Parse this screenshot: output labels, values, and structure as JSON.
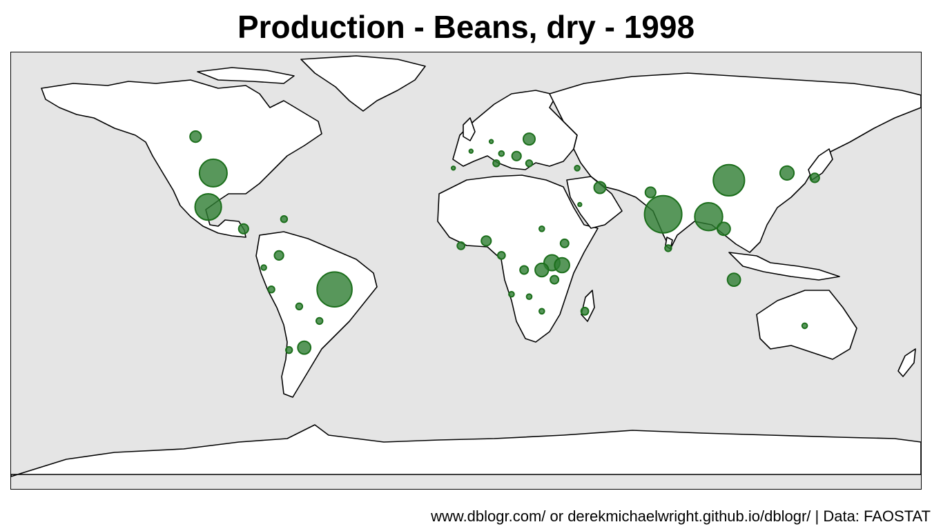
{
  "title": "Production - Beans, dry - 1998",
  "caption": "www.dblogr.com/ or derekmichaelwright.github.io/dblogr/ | Data: FAOSTAT",
  "colors": {
    "ocean": "#e5e5e5",
    "land": "#ffffff",
    "bubble": "#2e7d32"
  },
  "chart_data": {
    "type": "bubble-map",
    "points": [
      {
        "lon": 78,
        "lat": 21,
        "value": 100
      },
      {
        "lon": -52,
        "lat": -10,
        "value": 88
      },
      {
        "lon": 104,
        "lat": 35,
        "value": 70
      },
      {
        "lon": 96,
        "lat": 20,
        "value": 56
      },
      {
        "lon": -100,
        "lat": 38,
        "value": 55
      },
      {
        "lon": -102,
        "lat": 24,
        "value": 50
      },
      {
        "lon": 34,
        "lat": 1,
        "value": 18
      },
      {
        "lon": 38,
        "lat": 0,
        "value": 16
      },
      {
        "lon": 30,
        "lat": -2,
        "value": 13
      },
      {
        "lon": 127,
        "lat": 38,
        "value": 14
      },
      {
        "lon": 102,
        "lat": 15,
        "value": 12
      },
      {
        "lon": 106,
        "lat": -6,
        "value": 12
      },
      {
        "lon": -64,
        "lat": -34,
        "value": 12
      },
      {
        "lon": 53,
        "lat": 32,
        "value": 10
      },
      {
        "lon": 25,
        "lat": 52,
        "value": 10
      },
      {
        "lon": -107,
        "lat": 53,
        "value": 9
      },
      {
        "lon": 73,
        "lat": 30,
        "value": 8
      },
      {
        "lon": 138,
        "lat": 36,
        "value": 6
      },
      {
        "lon": 8,
        "lat": 10,
        "value": 7
      },
      {
        "lon": 20,
        "lat": 45,
        "value": 6
      },
      {
        "lon": -74,
        "lat": 4,
        "value": 6
      },
      {
        "lon": -88,
        "lat": 15,
        "value": 7
      },
      {
        "lon": 23,
        "lat": -2,
        "value": 5
      },
      {
        "lon": 39,
        "lat": 9,
        "value": 5
      },
      {
        "lon": 35,
        "lat": -6,
        "value": 5
      },
      {
        "lon": 47,
        "lat": -19,
        "value": 4
      },
      {
        "lon": -2,
        "lat": 8,
        "value": 4
      },
      {
        "lon": 14,
        "lat": 4,
        "value": 4
      },
      {
        "lon": 80,
        "lat": 7,
        "value": 3
      },
      {
        "lon": -58,
        "lat": -23,
        "value": 3
      },
      {
        "lon": -66,
        "lat": -17,
        "value": 3
      },
      {
        "lon": -77,
        "lat": -10,
        "value": 3
      },
      {
        "lon": -70,
        "lat": -35,
        "value": 3
      },
      {
        "lon": -72,
        "lat": 19,
        "value": 3
      },
      {
        "lon": 12,
        "lat": 42,
        "value": 3
      },
      {
        "lon": 25,
        "lat": 42,
        "value": 3
      },
      {
        "lon": 14,
        "lat": 46,
        "value": 2
      },
      {
        "lon": 44,
        "lat": 40,
        "value": 2
      },
      {
        "lon": 30,
        "lat": -19,
        "value": 2
      },
      {
        "lon": 25,
        "lat": -13,
        "value": 2
      },
      {
        "lon": 134,
        "lat": -25,
        "value": 2
      },
      {
        "lon": 30,
        "lat": 15,
        "value": 2
      },
      {
        "lon": 45,
        "lat": 25,
        "value": 1
      },
      {
        "lon": -5,
        "lat": 40,
        "value": 1
      },
      {
        "lon": 2,
        "lat": 47,
        "value": 1
      },
      {
        "lon": 10,
        "lat": 51,
        "value": 1
      },
      {
        "lon": -80,
        "lat": -1,
        "value": 2
      },
      {
        "lon": 18,
        "lat": -12,
        "value": 2
      }
    ]
  }
}
